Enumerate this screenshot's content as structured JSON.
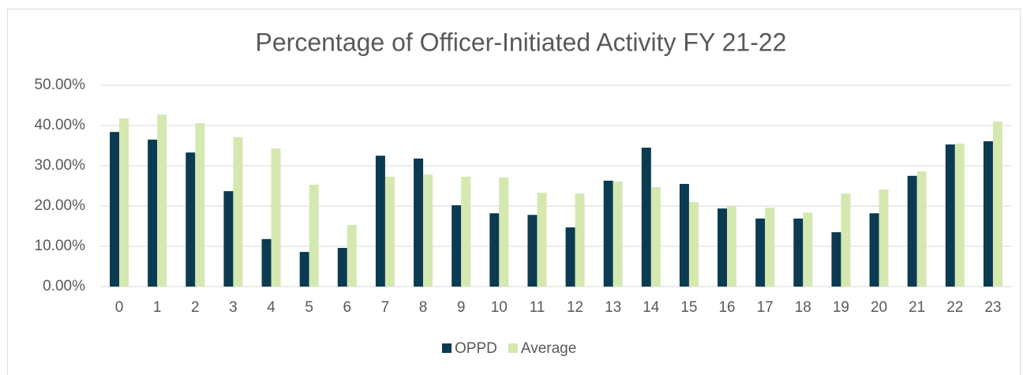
{
  "chart_data": {
    "type": "bar",
    "title": "Percentage of Officer-Initiated Activity FY 21-22",
    "categories": [
      "0",
      "1",
      "2",
      "3",
      "4",
      "5",
      "6",
      "7",
      "8",
      "9",
      "10",
      "11",
      "12",
      "13",
      "14",
      "15",
      "16",
      "17",
      "18",
      "19",
      "20",
      "21",
      "22",
      "23"
    ],
    "series": [
      {
        "name": "OPPD",
        "color": "#0b3a53",
        "values": [
          38.4,
          36.5,
          33.3,
          23.7,
          11.8,
          8.6,
          9.6,
          32.5,
          31.8,
          20.2,
          18.2,
          17.8,
          14.7,
          26.3,
          34.5,
          25.5,
          19.4,
          16.9,
          16.9,
          13.5,
          18.2,
          27.5,
          35.3,
          36.1
        ]
      },
      {
        "name": "Average",
        "color": "#d4e8b0",
        "values": [
          41.8,
          42.7,
          40.6,
          37.1,
          34.3,
          25.3,
          15.3,
          27.3,
          27.8,
          27.3,
          27.1,
          23.3,
          23.1,
          26.1,
          24.7,
          21.0,
          20.0,
          19.6,
          18.4,
          23.1,
          24.1,
          28.6,
          35.5,
          41.0
        ]
      }
    ],
    "ylim": [
      0,
      50
    ],
    "yticks": [
      {
        "value": 0,
        "label": "0.00%"
      },
      {
        "value": 10,
        "label": "10.00%"
      },
      {
        "value": 20,
        "label": "20.00%"
      },
      {
        "value": 30,
        "label": "30.00%"
      },
      {
        "value": 40,
        "label": "40.00%"
      },
      {
        "value": 50,
        "label": "50.00%"
      }
    ],
    "grid": true,
    "legend": "bottom"
  }
}
